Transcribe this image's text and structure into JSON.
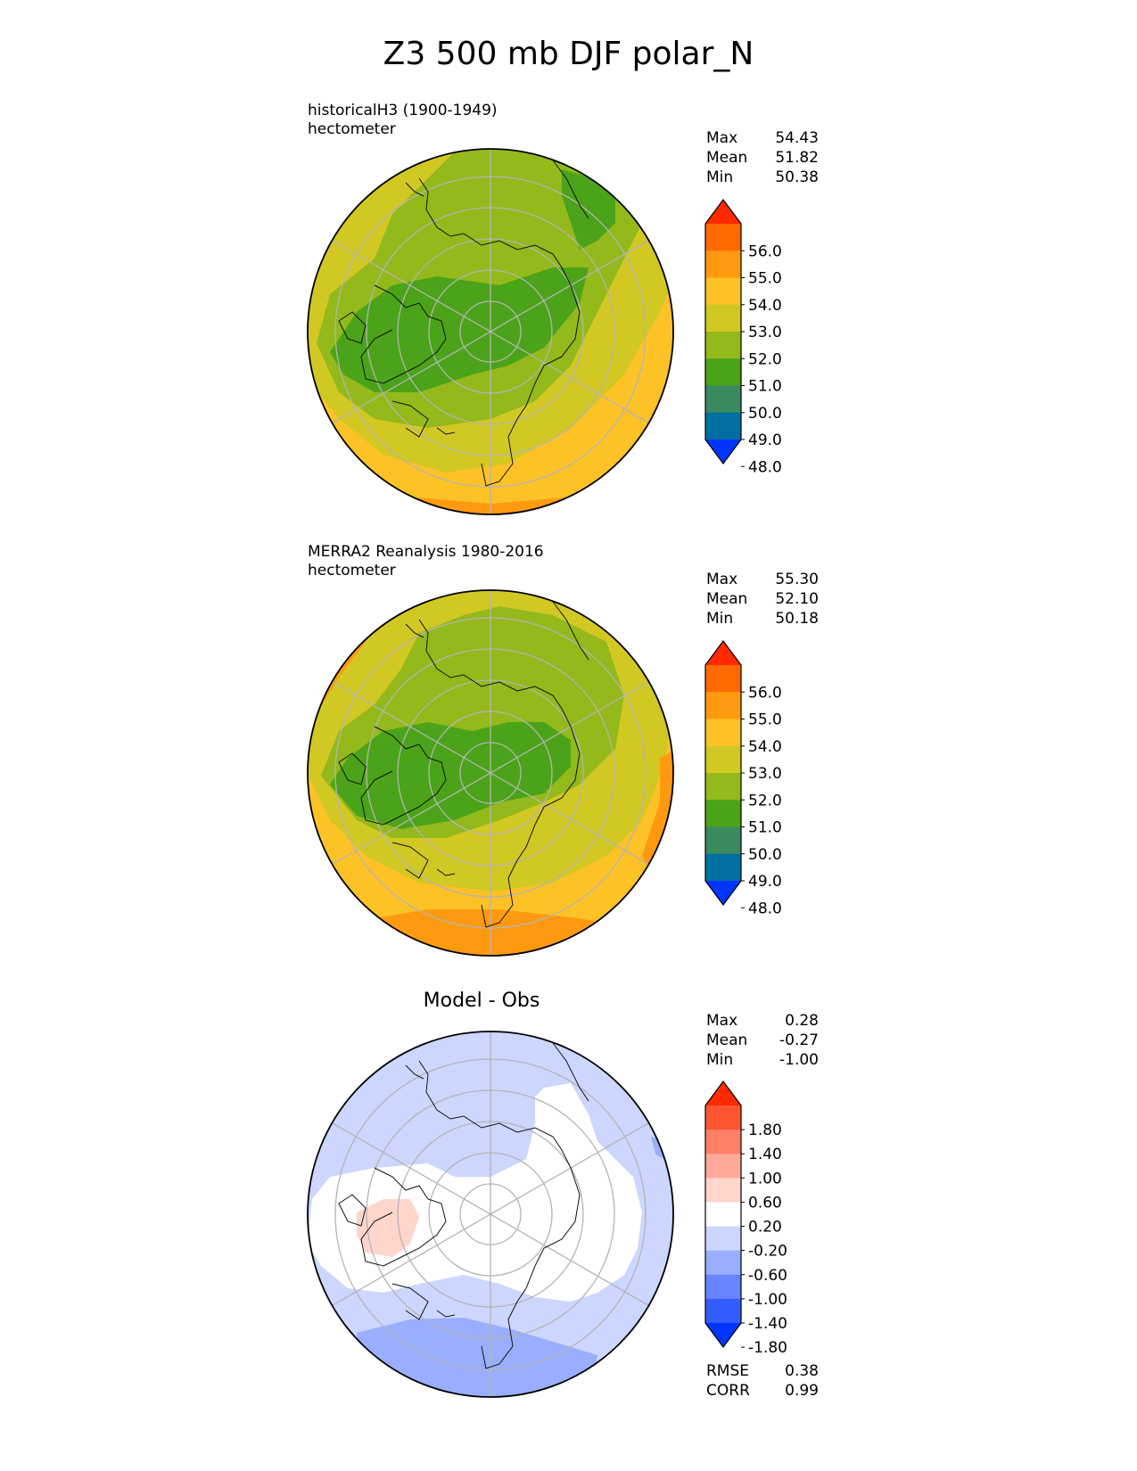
{
  "title": "Z3 500 mb DJF polar_N",
  "panels": [
    {
      "caption_line1": "historicalH3 (1900-1949)",
      "caption_line2": "hectometer",
      "stats": {
        "max_label": "Max",
        "max": "54.43",
        "mean_label": "Mean",
        "mean": "51.82",
        "min_label": "Min",
        "min": "50.38"
      }
    },
    {
      "caption_line1": "MERRA2 Reanalysis 1980-2016",
      "caption_line2": "hectometer",
      "stats": {
        "max_label": "Max",
        "max": "55.30",
        "mean_label": "Mean",
        "mean": "52.10",
        "min_label": "Min",
        "min": "50.18"
      }
    },
    {
      "title": "Model - Obs",
      "stats": {
        "max_label": "Max",
        "max": "0.28",
        "mean_label": "Mean",
        "mean": "-0.27",
        "min_label": "Min",
        "min": "-1.00"
      },
      "metrics": {
        "rmse_label": "RMSE",
        "rmse": "0.38",
        "corr_label": "CORR",
        "corr": "0.99"
      }
    }
  ],
  "colorbars": {
    "field": {
      "ticks": [
        "56.0",
        "55.0",
        "54.0",
        "53.0",
        "52.0",
        "51.0",
        "50.0",
        "49.0",
        "48.0"
      ],
      "colors": [
        "#ff2a00",
        "#ff6a00",
        "#ff9a10",
        "#fcc226",
        "#d2c823",
        "#93b91b",
        "#4ba319",
        "#3a8a60",
        "#016fa0",
        "#0035ff"
      ]
    },
    "diff": {
      "ticks": [
        "1.80",
        "1.40",
        "1.00",
        "0.60",
        "0.20",
        "-0.20",
        "-0.60",
        "-1.00",
        "-1.40",
        "-1.80"
      ],
      "colors": [
        "#ff2a00",
        "#ff5533",
        "#ff8066",
        "#ffaa99",
        "#ffd5cc",
        "#ffffff",
        "#ccd6ff",
        "#99aeff",
        "#6685ff",
        "#335dff",
        "#0035ff"
      ]
    }
  }
}
